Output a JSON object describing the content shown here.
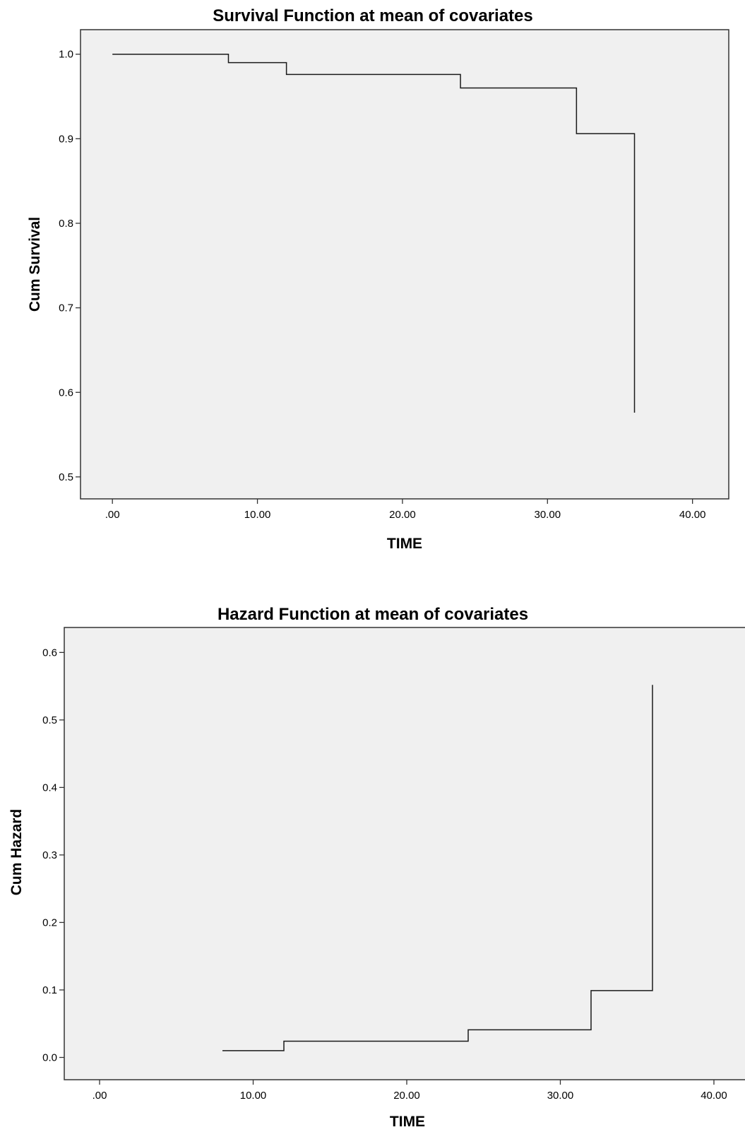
{
  "chart_data": [
    {
      "id": "survival",
      "type": "line",
      "step": true,
      "title": "Survival Function at mean of covariates",
      "xlabel": "TIME",
      "ylabel": "Cum Survival",
      "xlim": [
        -2.2,
        42.5
      ],
      "ylim": [
        0.474,
        1.029
      ],
      "xticks": [
        0,
        10,
        20,
        30,
        40
      ],
      "xtick_labels": [
        ".00",
        "10.00",
        "20.00",
        "30.00",
        "40.00"
      ],
      "yticks": [
        0.5,
        0.6,
        0.7,
        0.8,
        0.9,
        1.0
      ],
      "ytick_labels": [
        "0.5",
        "0.6",
        "0.7",
        "0.8",
        "0.9",
        "1.0"
      ],
      "grid": false,
      "series": [
        {
          "x": [
            0,
            8,
            12,
            24,
            32,
            36
          ],
          "y": [
            1.0,
            0.99,
            0.976,
            0.96,
            0.906,
            0.576
          ]
        }
      ]
    },
    {
      "id": "hazard",
      "type": "line",
      "step": true,
      "title": "Hazard Function at mean of covariates",
      "xlabel": "TIME",
      "ylabel": "Cum Hazard",
      "xlim": [
        -2.3,
        42.3
      ],
      "ylim": [
        -0.033,
        0.637
      ],
      "xticks": [
        0,
        10,
        20,
        30,
        40
      ],
      "xtick_labels": [
        ".00",
        "10.00",
        "20.00",
        "30.00",
        "40.00"
      ],
      "yticks": [
        0.0,
        0.1,
        0.2,
        0.3,
        0.4,
        0.5,
        0.6
      ],
      "ytick_labels": [
        "0.0",
        "0.1",
        "0.2",
        "0.3",
        "0.4",
        "0.5",
        "0.6"
      ],
      "grid": false,
      "series": [
        {
          "x": [
            8,
            12,
            24,
            32,
            36
          ],
          "y": [
            0.01,
            0.024,
            0.041,
            0.099,
            0.552
          ]
        }
      ]
    }
  ]
}
